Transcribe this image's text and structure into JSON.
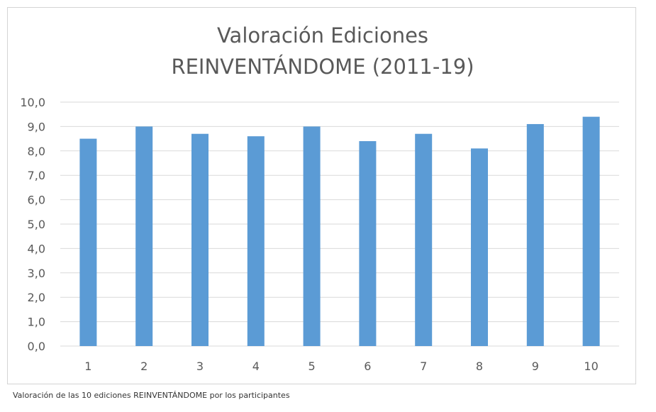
{
  "chart_data": {
    "type": "bar",
    "title_lines": [
      "Valoración Ediciones",
      "REINVENTÁNDOME (2011-19)"
    ],
    "categories": [
      "1",
      "2",
      "3",
      "4",
      "5",
      "6",
      "7",
      "8",
      "9",
      "10"
    ],
    "values": [
      8.5,
      9.0,
      8.7,
      8.6,
      9.0,
      8.4,
      8.7,
      8.1,
      9.1,
      9.4
    ],
    "y_ticks": [
      "0,0",
      "1,0",
      "2,0",
      "3,0",
      "4,0",
      "5,0",
      "6,0",
      "7,0",
      "8,0",
      "9,0",
      "10,0"
    ],
    "ylim": [
      0,
      10
    ],
    "grid": true,
    "legend": "none",
    "bar_color": "#5b9bd5"
  },
  "caption": "Valoración de las 10 ediciones REINVENTÁNDOME por los participantes"
}
